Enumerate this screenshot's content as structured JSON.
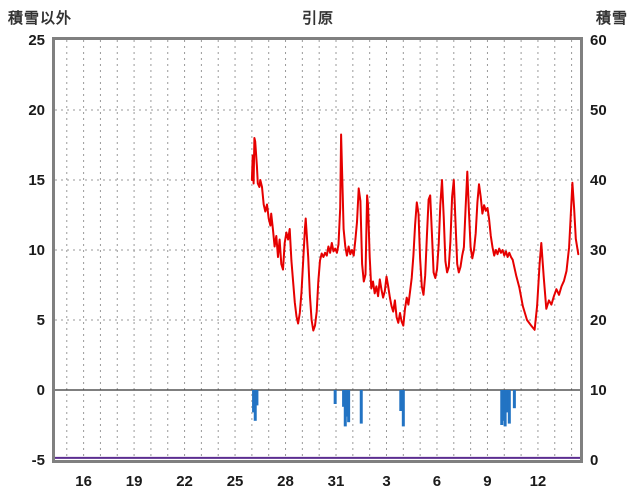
{
  "chart_data": {
    "type": "line",
    "title": "引原",
    "left_axis": {
      "title": "積雪以外",
      "min": -5,
      "max": 25,
      "ticks": [
        25,
        20,
        15,
        10,
        5,
        0,
        -5
      ]
    },
    "right_axis": {
      "title": "積雪",
      "min": 0,
      "max": 60,
      "ticks": [
        60,
        50,
        40,
        30,
        20,
        10,
        0
      ]
    },
    "x_axis": {
      "min": 14.3,
      "max": 45.5,
      "minor_step": 1,
      "ticks": [
        {
          "pos": 16,
          "label": "16"
        },
        {
          "pos": 19,
          "label": "19"
        },
        {
          "pos": 22,
          "label": "22"
        },
        {
          "pos": 25,
          "label": "25"
        },
        {
          "pos": 28,
          "label": "28"
        },
        {
          "pos": 31,
          "label": "31"
        },
        {
          "pos": 34,
          "label": "3"
        },
        {
          "pos": 37,
          "label": "6"
        },
        {
          "pos": 40,
          "label": "9"
        },
        {
          "pos": 43,
          "label": "12"
        }
      ]
    },
    "colors": {
      "line": "#e60000",
      "bars": "#2273c3",
      "baseline": "#5c2e91",
      "grid": "#9a9a9a",
      "zero_line": "#333333",
      "frame": "#808080",
      "text": "#1a1a1a",
      "title_text": "#333333",
      "background": "#ffffff"
    },
    "series": [
      {
        "name": "snow-depth",
        "type": "line",
        "axis": "right",
        "color_key": "line",
        "width": 2,
        "points": [
          [
            26.0,
            40
          ],
          [
            26.05,
            43.5
          ],
          [
            26.1,
            39.5
          ],
          [
            26.15,
            46
          ],
          [
            26.2,
            45.5
          ],
          [
            26.3,
            42
          ],
          [
            26.35,
            39.5
          ],
          [
            26.45,
            39
          ],
          [
            26.5,
            40
          ],
          [
            26.6,
            39
          ],
          [
            26.7,
            36.5
          ],
          [
            26.8,
            35.5
          ],
          [
            26.9,
            36.5
          ],
          [
            27.0,
            34.5
          ],
          [
            27.1,
            33.5
          ],
          [
            27.15,
            35.2
          ],
          [
            27.25,
            33
          ],
          [
            27.35,
            30.5
          ],
          [
            27.45,
            32
          ],
          [
            27.55,
            29
          ],
          [
            27.65,
            31.5
          ],
          [
            27.75,
            28
          ],
          [
            27.85,
            27.2
          ],
          [
            27.95,
            31
          ],
          [
            28.05,
            32.5
          ],
          [
            28.15,
            31.5
          ],
          [
            28.25,
            33
          ],
          [
            28.35,
            28.5
          ],
          [
            28.45,
            25.5
          ],
          [
            28.55,
            22.5
          ],
          [
            28.65,
            20.5
          ],
          [
            28.75,
            19.5
          ],
          [
            28.85,
            21
          ],
          [
            28.95,
            24
          ],
          [
            29.05,
            28.5
          ],
          [
            29.15,
            33
          ],
          [
            29.2,
            34.5
          ],
          [
            29.35,
            29
          ],
          [
            29.45,
            23.5
          ],
          [
            29.55,
            20
          ],
          [
            29.65,
            18.5
          ],
          [
            29.75,
            19.2
          ],
          [
            29.85,
            21.2
          ],
          [
            29.95,
            25.5
          ],
          [
            30.05,
            28.5
          ],
          [
            30.15,
            29.5
          ],
          [
            30.25,
            29
          ],
          [
            30.35,
            29.6
          ],
          [
            30.45,
            29.2
          ],
          [
            30.55,
            30.5
          ],
          [
            30.65,
            29.6
          ],
          [
            30.75,
            31
          ],
          [
            30.85,
            29.8
          ],
          [
            30.95,
            30.2
          ],
          [
            31.05,
            29.6
          ],
          [
            31.15,
            30.8
          ],
          [
            31.25,
            36
          ],
          [
            31.3,
            46.5
          ],
          [
            31.4,
            38
          ],
          [
            31.45,
            33
          ],
          [
            31.55,
            30.5
          ],
          [
            31.65,
            29.2
          ],
          [
            31.75,
            30.5
          ],
          [
            31.85,
            29.4
          ],
          [
            31.95,
            30
          ],
          [
            32.05,
            29.2
          ],
          [
            32.15,
            31.5
          ],
          [
            32.25,
            34
          ],
          [
            32.35,
            38.8
          ],
          [
            32.45,
            37
          ],
          [
            32.55,
            28
          ],
          [
            32.65,
            25.5
          ],
          [
            32.75,
            26.5
          ],
          [
            32.85,
            37.8
          ],
          [
            32.9,
            36.5
          ],
          [
            33.0,
            29
          ],
          [
            33.1,
            24.5
          ],
          [
            33.2,
            25.5
          ],
          [
            33.3,
            23.8
          ],
          [
            33.4,
            24.8
          ],
          [
            33.5,
            23.4
          ],
          [
            33.6,
            25.8
          ],
          [
            33.7,
            24.4
          ],
          [
            33.8,
            23.2
          ],
          [
            33.9,
            24.1
          ],
          [
            34.0,
            26.2
          ],
          [
            34.1,
            24.8
          ],
          [
            34.2,
            23.2
          ],
          [
            34.3,
            22
          ],
          [
            34.4,
            21.2
          ],
          [
            34.5,
            22.8
          ],
          [
            34.6,
            20.4
          ],
          [
            34.7,
            19.6
          ],
          [
            34.8,
            21
          ],
          [
            34.9,
            19.8
          ],
          [
            35.0,
            19.2
          ],
          [
            35.1,
            21.6
          ],
          [
            35.2,
            23.2
          ],
          [
            35.3,
            22.2
          ],
          [
            35.4,
            24
          ],
          [
            35.5,
            26
          ],
          [
            35.6,
            29.2
          ],
          [
            35.7,
            33.6
          ],
          [
            35.8,
            36.8
          ],
          [
            35.9,
            35.2
          ],
          [
            36.0,
            28.8
          ],
          [
            36.1,
            24.8
          ],
          [
            36.2,
            23.6
          ],
          [
            36.3,
            26.4
          ],
          [
            36.4,
            32
          ],
          [
            36.5,
            37.2
          ],
          [
            36.6,
            37.8
          ],
          [
            36.7,
            32.4
          ],
          [
            36.8,
            26.8
          ],
          [
            36.9,
            26
          ],
          [
            37.0,
            27.2
          ],
          [
            37.1,
            30.8
          ],
          [
            37.2,
            36.4
          ],
          [
            37.3,
            40
          ],
          [
            37.4,
            34.8
          ],
          [
            37.5,
            28.4
          ],
          [
            37.6,
            26.8
          ],
          [
            37.7,
            27.6
          ],
          [
            37.8,
            31.2
          ],
          [
            37.9,
            37.6
          ],
          [
            38.0,
            40
          ],
          [
            38.1,
            34
          ],
          [
            38.2,
            28
          ],
          [
            38.3,
            26.8
          ],
          [
            38.4,
            27.6
          ],
          [
            38.5,
            29.2
          ],
          [
            38.6,
            30.4
          ],
          [
            38.7,
            36
          ],
          [
            38.8,
            41.2
          ],
          [
            38.9,
            35.6
          ],
          [
            39.0,
            30.4
          ],
          [
            39.1,
            28.8
          ],
          [
            39.2,
            30
          ],
          [
            39.3,
            32.4
          ],
          [
            39.4,
            36.8
          ],
          [
            39.5,
            39.4
          ],
          [
            39.6,
            37.6
          ],
          [
            39.7,
            35.2
          ],
          [
            39.8,
            36.4
          ],
          [
            39.9,
            35.6
          ],
          [
            40.0,
            36
          ],
          [
            40.1,
            34.4
          ],
          [
            40.2,
            32
          ],
          [
            40.3,
            30.4
          ],
          [
            40.4,
            29.2
          ],
          [
            40.5,
            30
          ],
          [
            40.6,
            29.4
          ],
          [
            40.7,
            30.2
          ],
          [
            40.8,
            29.6
          ],
          [
            40.9,
            30
          ],
          [
            41.0,
            29.2
          ],
          [
            41.1,
            29.8
          ],
          [
            41.2,
            29
          ],
          [
            41.3,
            29.6
          ],
          [
            41.4,
            29
          ],
          [
            41.5,
            28.6
          ],
          [
            41.7,
            26.4
          ],
          [
            41.9,
            24.6
          ],
          [
            42.1,
            22
          ],
          [
            42.35,
            20
          ],
          [
            42.6,
            19.2
          ],
          [
            42.8,
            18.6
          ],
          [
            42.95,
            22
          ],
          [
            43.1,
            28
          ],
          [
            43.2,
            31
          ],
          [
            43.35,
            26
          ],
          [
            43.5,
            21.6
          ],
          [
            43.65,
            22.8
          ],
          [
            43.8,
            22.2
          ],
          [
            43.95,
            23.4
          ],
          [
            44.1,
            24.4
          ],
          [
            44.25,
            23.6
          ],
          [
            44.4,
            24.8
          ],
          [
            44.55,
            25.6
          ],
          [
            44.7,
            27
          ],
          [
            44.85,
            30.4
          ],
          [
            44.95,
            34.8
          ],
          [
            45.05,
            39.6
          ],
          [
            45.15,
            36
          ],
          [
            45.25,
            31.6
          ],
          [
            45.4,
            29.4
          ]
        ]
      },
      {
        "name": "precipitation-bars",
        "type": "bar",
        "axis": "left",
        "color_key": "bars",
        "baseline": 0,
        "points": [
          [
            26.1,
            -1.6
          ],
          [
            26.2,
            -2.2
          ],
          [
            26.3,
            -1.1
          ],
          [
            30.95,
            -1.0
          ],
          [
            31.45,
            -1.2
          ],
          [
            31.55,
            -2.6
          ],
          [
            31.65,
            -1.9
          ],
          [
            31.75,
            -2.3
          ],
          [
            32.5,
            -2.4
          ],
          [
            34.85,
            -1.5
          ],
          [
            35.0,
            -2.6
          ],
          [
            40.85,
            -2.5
          ],
          [
            40.95,
            -2.2
          ],
          [
            41.05,
            -2.6
          ],
          [
            41.15,
            -1.6
          ],
          [
            41.3,
            -2.4
          ],
          [
            41.6,
            -1.3
          ]
        ]
      },
      {
        "name": "bottom-baseline",
        "type": "line",
        "axis": "left",
        "color_key": "baseline",
        "width": 2,
        "points": [
          [
            14.3,
            -4.85
          ],
          [
            45.5,
            -4.85
          ]
        ]
      }
    ]
  }
}
